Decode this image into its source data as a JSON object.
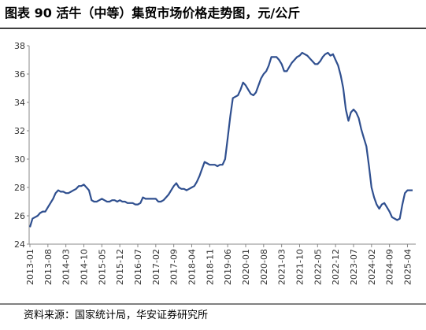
{
  "chart_data": {
    "type": "line",
    "title": "图表 90  活牛（中等）集贸市场价格走势图，元/公斤",
    "source": "资料来源：国家统计局，华安证券研究所",
    "categories": [
      "2013-01",
      null,
      null,
      null,
      null,
      null,
      null,
      "2013-08",
      null,
      null,
      null,
      null,
      null,
      null,
      "2014-03",
      null,
      null,
      null,
      null,
      null,
      null,
      "2014-10",
      null,
      null,
      null,
      null,
      null,
      null,
      "2015-05",
      null,
      null,
      null,
      null,
      null,
      null,
      "2015-12",
      null,
      null,
      null,
      null,
      null,
      null,
      "2016-07",
      null,
      null,
      null,
      null,
      null,
      null,
      "2017-02",
      null,
      null,
      null,
      null,
      null,
      null,
      "2017-09",
      null,
      null,
      null,
      null,
      null,
      null,
      "2018-04",
      null,
      null,
      null,
      null,
      null,
      null,
      "2018-11",
      null,
      null,
      null,
      null,
      null,
      null,
      "2019-06",
      null,
      null,
      null,
      null,
      null,
      null,
      "2020-01",
      null,
      null,
      null,
      null,
      null,
      null,
      "2020-08",
      null,
      null,
      null,
      null,
      null,
      null,
      "2021-03",
      null,
      null,
      null,
      null,
      null,
      null,
      "2021-10",
      null,
      null,
      null,
      null,
      null,
      null,
      "2022-05",
      null,
      null,
      null,
      null,
      null,
      null,
      "2022-12",
      null,
      null,
      null,
      null,
      null,
      null,
      "2023-07",
      null,
      null,
      null,
      null,
      null,
      null,
      "2024-02",
      null,
      null,
      null,
      null,
      null,
      null,
      "2024-09",
      null,
      null,
      null,
      null,
      null,
      null,
      "2025-04",
      null,
      null
    ],
    "values": [
      25.2,
      25.8,
      25.9,
      26.0,
      26.2,
      26.3,
      26.3,
      26.6,
      26.9,
      27.2,
      27.6,
      27.8,
      27.7,
      27.7,
      27.6,
      27.6,
      27.7,
      27.8,
      27.9,
      28.1,
      28.1,
      28.2,
      28.0,
      27.8,
      27.1,
      27.0,
      27.0,
      27.1,
      27.2,
      27.1,
      27.0,
      27.0,
      27.1,
      27.1,
      27.0,
      27.1,
      27.0,
      27.0,
      26.9,
      26.9,
      26.9,
      26.8,
      26.8,
      26.9,
      27.3,
      27.2,
      27.2,
      27.2,
      27.2,
      27.2,
      27.0,
      27.0,
      27.1,
      27.3,
      27.5,
      27.8,
      28.1,
      28.3,
      28.0,
      27.9,
      27.9,
      27.8,
      27.9,
      28.0,
      28.1,
      28.4,
      28.8,
      29.3,
      29.8,
      29.7,
      29.6,
      29.6,
      29.6,
      29.5,
      29.6,
      29.6,
      30.0,
      31.5,
      33.0,
      34.3,
      34.4,
      34.5,
      34.9,
      35.4,
      35.2,
      34.9,
      34.6,
      34.5,
      34.7,
      35.2,
      35.7,
      36.0,
      36.2,
      36.6,
      37.2,
      37.2,
      37.2,
      37.0,
      36.7,
      36.2,
      36.2,
      36.5,
      36.8,
      37.0,
      37.2,
      37.3,
      37.5,
      37.4,
      37.3,
      37.1,
      36.9,
      36.7,
      36.7,
      36.9,
      37.2,
      37.4,
      37.5,
      37.3,
      37.4,
      37.0,
      36.6,
      35.9,
      35.0,
      33.5,
      32.7,
      33.3,
      33.5,
      33.3,
      32.9,
      32.1,
      31.5,
      30.9,
      29.5,
      28.0,
      27.3,
      26.8,
      26.5,
      26.8,
      26.9,
      26.6,
      26.3,
      25.9,
      25.8,
      25.7,
      25.8,
      26.8,
      27.6,
      27.8,
      27.8,
      27.8
    ],
    "color": "#2f4f8f",
    "ylim": [
      24,
      38
    ],
    "yticks": [
      24,
      26,
      28,
      30,
      32,
      34,
      36,
      38
    ],
    "grid": false
  }
}
